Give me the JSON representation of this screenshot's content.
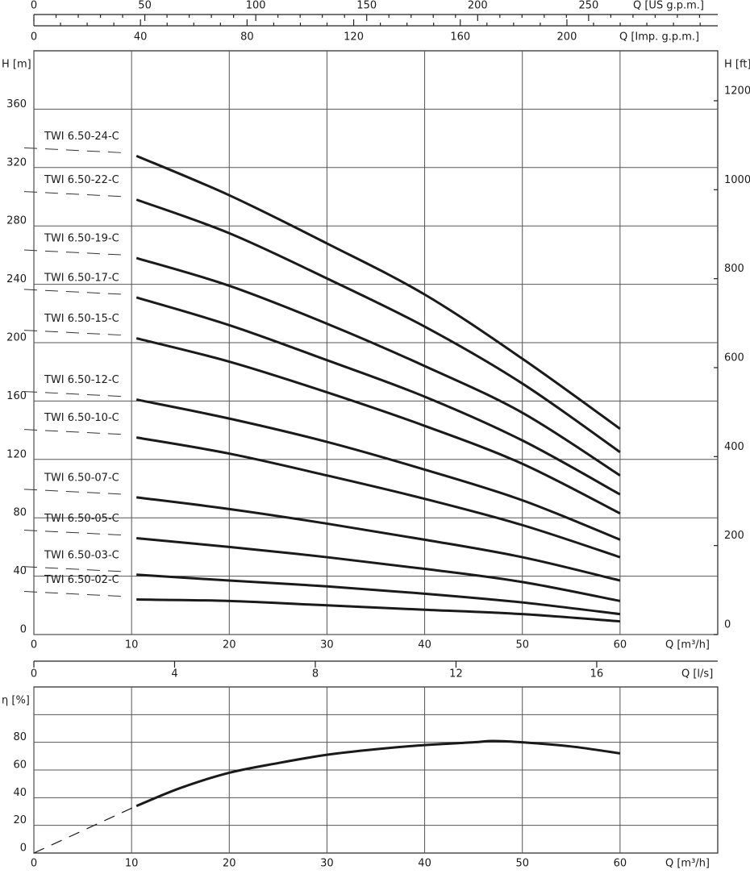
{
  "chart_data": [
    {
      "type": "line",
      "xlabel": "Q [m³/h]",
      "ylabel": "H [m]",
      "y2label": "H [ft]",
      "xlim": [
        0,
        70
      ],
      "xticks": [
        0,
        10,
        20,
        30,
        40,
        50,
        60
      ],
      "ylim": [
        0,
        400
      ],
      "yticks": [
        0,
        40,
        80,
        120,
        160,
        200,
        240,
        280,
        320,
        360
      ],
      "y2lim": [
        0,
        1312.3
      ],
      "y2ticks": [
        0,
        200,
        400,
        600,
        800,
        1000,
        1200
      ],
      "grid": true,
      "top_axes": [
        {
          "label": "Q [US g.p.m.]",
          "lim": [
            0,
            308.2
          ],
          "ticks": [
            0,
            50,
            100,
            150,
            200,
            250
          ],
          "minor_ticks": [
            10,
            20,
            30,
            40,
            60,
            70,
            80,
            90,
            110,
            120,
            130,
            140,
            160,
            170,
            180,
            190,
            210,
            220,
            230,
            240,
            260,
            270,
            280,
            290,
            300
          ]
        },
        {
          "label": "Q [Imp. g.p.m.]",
          "lim": [
            0,
            256.6
          ],
          "ticks": [
            0,
            40,
            80,
            120,
            160,
            200
          ],
          "minor_ticks": [
            10,
            20,
            30,
            50,
            60,
            70,
            90,
            100,
            110,
            130,
            140,
            150,
            170,
            180,
            190,
            210,
            220,
            230,
            240,
            250
          ]
        }
      ],
      "x": [
        10.5,
        20,
        30,
        40,
        50,
        60
      ],
      "series": [
        {
          "name": "TWI 6.50-24-C",
          "color": "#1a1a1a",
          "values": [
            328,
            301,
            268,
            233,
            189,
            141
          ]
        },
        {
          "name": "TWI 6.50-22-C",
          "color": "#1a1a1a",
          "values": [
            298,
            275,
            244,
            211,
            172,
            125
          ]
        },
        {
          "name": "TWI 6.50-19-C",
          "color": "#1a1a1a",
          "values": [
            258,
            239,
            213,
            184,
            152,
            109
          ]
        },
        {
          "name": "TWI 6.50-17-C",
          "color": "#1a1a1a",
          "values": [
            231,
            212,
            188,
            163,
            133,
            96
          ]
        },
        {
          "name": "TWI 6.50-15-C",
          "color": "#1a1a1a",
          "values": [
            203,
            187,
            166,
            143,
            117,
            83
          ]
        },
        {
          "name": "TWI 6.50-12-C",
          "color": "#1a1a1a",
          "values": [
            161,
            148,
            132,
            113,
            92,
            65
          ]
        },
        {
          "name": "TWI 6.50-10-C",
          "color": "#1a1a1a",
          "values": [
            135,
            124,
            109,
            93,
            75,
            53
          ]
        },
        {
          "name": "TWI 6.50-07-C",
          "color": "#1a1a1a",
          "values": [
            94,
            86,
            76,
            65,
            53,
            37
          ]
        },
        {
          "name": "TWI 6.50-05-C",
          "color": "#1a1a1a",
          "values": [
            66,
            60,
            53,
            45,
            36,
            23
          ]
        },
        {
          "name": "TWI 6.50-03-C",
          "color": "#1a1a1a",
          "values": [
            41,
            37,
            33,
            28,
            22,
            14
          ]
        },
        {
          "name": "TWI 6.50-02-C",
          "color": "#1a1a1a",
          "values": [
            24,
            23,
            20,
            17,
            14,
            9
          ]
        }
      ]
    },
    {
      "type": "line",
      "xlabel": "Q [m³/h]",
      "ylabel": "η [%]",
      "xlim": [
        0,
        70
      ],
      "xticks": [
        0,
        10,
        20,
        30,
        40,
        50,
        60
      ],
      "ylim": [
        0,
        120
      ],
      "yticks": [
        0,
        20,
        40,
        60,
        80
      ],
      "ygrid": [
        20,
        40,
        60,
        80,
        100
      ],
      "grid": true,
      "top_axes": [
        {
          "label": "Q [l/s]",
          "lim": [
            0,
            19.44
          ],
          "ticks": [
            0,
            4,
            8,
            12,
            16
          ]
        }
      ],
      "series": [
        {
          "color": "#1a1a1a",
          "dashed": true,
          "x": [
            0,
            10.5
          ],
          "values": [
            0,
            34
          ]
        },
        {
          "color": "#1a1a1a",
          "dashed": false,
          "x": [
            10.5,
            15,
            20,
            25,
            30,
            35,
            40,
            45,
            47,
            50,
            55,
            60
          ],
          "values": [
            34,
            47,
            58,
            65,
            71,
            75,
            78,
            80,
            81,
            80,
            77,
            72
          ]
        }
      ]
    }
  ]
}
